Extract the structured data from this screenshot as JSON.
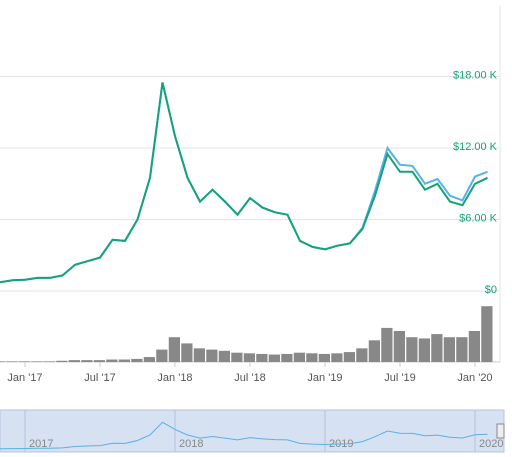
{
  "chart_data": [
    {
      "type": "line",
      "x": [
        "2016-11",
        "2016-12",
        "2017-01",
        "2017-02",
        "2017-03",
        "2017-04",
        "2017-05",
        "2017-06",
        "2017-07",
        "2017-08",
        "2017-09",
        "2017-10",
        "2017-11",
        "2017-12",
        "2018-01",
        "2018-02",
        "2018-03",
        "2018-04",
        "2018-05",
        "2018-06",
        "2018-07",
        "2018-08",
        "2018-09",
        "2018-10",
        "2018-11",
        "2018-12",
        "2019-01",
        "2019-02",
        "2019-03",
        "2019-04",
        "2019-05",
        "2019-06",
        "2019-07",
        "2019-08",
        "2019-09",
        "2019-10",
        "2019-11",
        "2019-12",
        "2020-01",
        "2020-02"
      ],
      "series": [
        {
          "color": "#5ab0e8",
          "values": [
            740,
            900,
            950,
            1100,
            1100,
            1300,
            2200,
            2500,
            2800,
            4300,
            4200,
            6000,
            9500,
            17500,
            13000,
            9500,
            7500,
            8500,
            7500,
            6400,
            7800,
            7000,
            6600,
            6400,
            4200,
            3700,
            3500,
            3800,
            4000,
            5300,
            8400,
            12000,
            10600,
            10500,
            9000,
            9400,
            8000,
            7600,
            9600,
            10000
          ]
        },
        {
          "color": "#16a27a",
          "values": [
            740,
            900,
            950,
            1100,
            1100,
            1300,
            2200,
            2500,
            2800,
            4300,
            4200,
            6000,
            9500,
            17500,
            13000,
            9500,
            7500,
            8500,
            7500,
            6400,
            7800,
            7000,
            6600,
            6400,
            4200,
            3700,
            3500,
            3800,
            4000,
            5200,
            8000,
            11500,
            10000,
            10000,
            8500,
            9000,
            7500,
            7200,
            9000,
            9500
          ]
        }
      ],
      "xlim": [
        "2016-11",
        "2020-03"
      ],
      "xticks": [
        {
          "value": "2017-01",
          "label": "Jan '17"
        },
        {
          "value": "2017-07",
          "label": "Jul '17"
        },
        {
          "value": "2018-01",
          "label": "Jan '18"
        },
        {
          "value": "2018-07",
          "label": "Jul '18"
        },
        {
          "value": "2019-01",
          "label": "Jan '19"
        },
        {
          "value": "2019-07",
          "label": "Jul '19"
        },
        {
          "value": "2020-01",
          "label": "Jan '20"
        }
      ],
      "ylim": [
        0,
        24000
      ],
      "yticks": [
        {
          "value": 0,
          "label": "$0"
        },
        {
          "value": 6000,
          "label": "$6.00 K"
        },
        {
          "value": 12000,
          "label": "$12.00 K"
        },
        {
          "value": 18000,
          "label": "$18.00 K"
        }
      ],
      "tick_color": "#16a27a",
      "grid": true
    },
    {
      "type": "bar",
      "values": [
        1,
        1,
        1,
        1,
        1,
        2,
        3,
        3,
        3,
        4,
        4,
        5,
        8,
        20,
        40,
        30,
        22,
        20,
        18,
        15,
        14,
        13,
        12,
        13,
        15,
        14,
        13,
        14,
        16,
        22,
        35,
        55,
        50,
        40,
        38,
        45,
        40,
        40,
        50,
        90
      ],
      "ylim": [
        0,
        100
      ],
      "color": "#888888"
    },
    {
      "type": "navigator",
      "xlim": [
        "2016-11",
        "2020-03"
      ],
      "xticks": [
        {
          "value": "2017-01",
          "label": "2017"
        },
        {
          "value": "2018-01",
          "label": "2018"
        },
        {
          "value": "2019-01",
          "label": "2019"
        },
        {
          "value": "2020-01",
          "label": "2020"
        }
      ],
      "ylim": [
        0,
        24000
      ],
      "color": "#5ab0e8"
    }
  ]
}
